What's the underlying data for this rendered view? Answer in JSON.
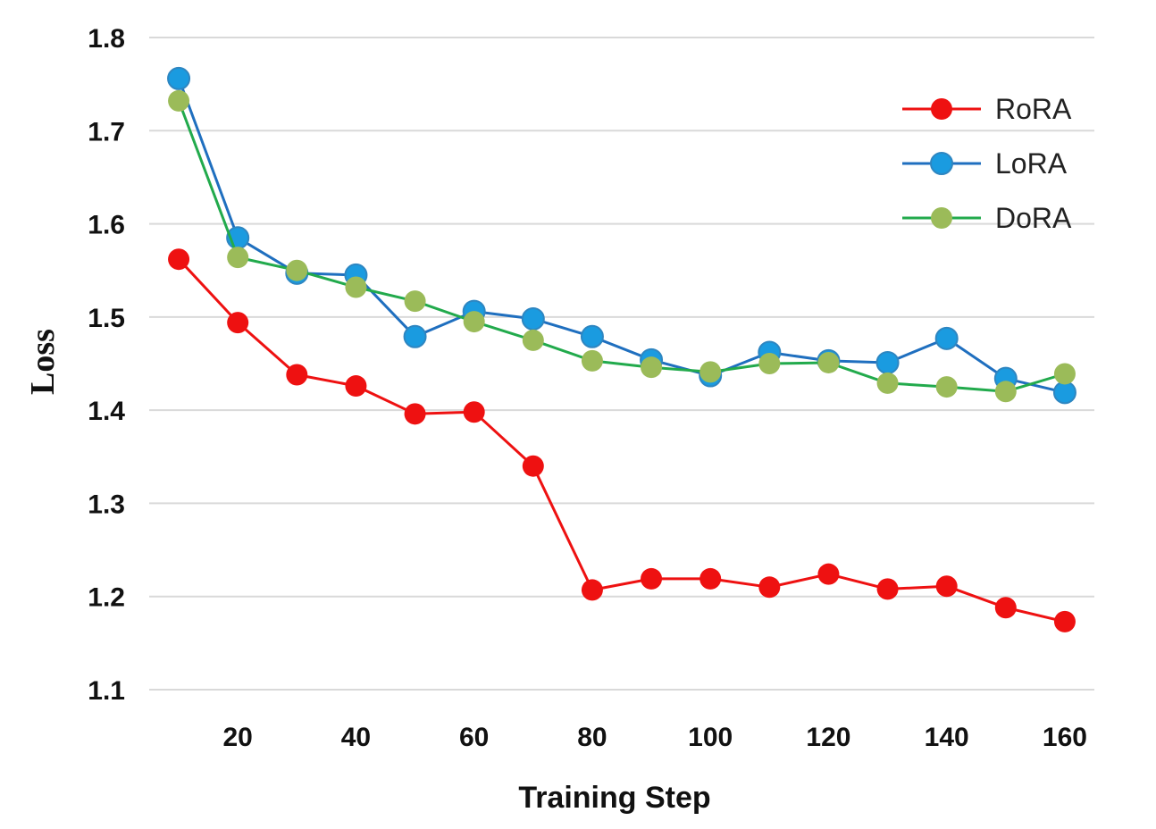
{
  "chart_data": {
    "type": "line",
    "title": "",
    "xlabel": "Training Step",
    "ylabel": "Loss",
    "x": [
      10,
      20,
      30,
      40,
      50,
      60,
      70,
      80,
      90,
      100,
      110,
      120,
      130,
      140,
      150,
      160
    ],
    "xticks": [
      20,
      40,
      60,
      80,
      100,
      120,
      140,
      160
    ],
    "xlim": [
      5,
      165
    ],
    "yticks": [
      "1.1",
      "1.2",
      "1.3",
      "1.4",
      "1.5",
      "1.6",
      "1.7",
      "1.8"
    ],
    "ylim": [
      1.1,
      1.8
    ],
    "grid": true,
    "legend_position": "top-right",
    "series": [
      {
        "name": "LoRA",
        "color": "#1f6fbf",
        "marker_color": "#1a9be0",
        "values": [
          1.756,
          1.585,
          1.547,
          1.545,
          1.479,
          1.506,
          1.498,
          1.479,
          1.454,
          1.437,
          1.462,
          1.453,
          1.451,
          1.477,
          1.434,
          1.419
        ]
      },
      {
        "name": "DoRA",
        "color": "#22aa4c",
        "marker_color": "#9bbb59",
        "values": [
          1.732,
          1.564,
          1.55,
          1.532,
          1.517,
          1.495,
          1.475,
          1.453,
          1.446,
          1.441,
          1.45,
          1.451,
          1.429,
          1.425,
          1.42,
          1.439
        ]
      },
      {
        "name": "RoRA",
        "color": "#ee1111",
        "marker_color": "#ee1111",
        "values": [
          1.562,
          1.494,
          1.438,
          1.426,
          1.396,
          1.398,
          1.34,
          1.207,
          1.219,
          1.219,
          1.21,
          1.224,
          1.208,
          1.211,
          1.188,
          1.173
        ]
      }
    ],
    "legend_order": [
      "RoRA",
      "LoRA",
      "DoRA"
    ]
  }
}
